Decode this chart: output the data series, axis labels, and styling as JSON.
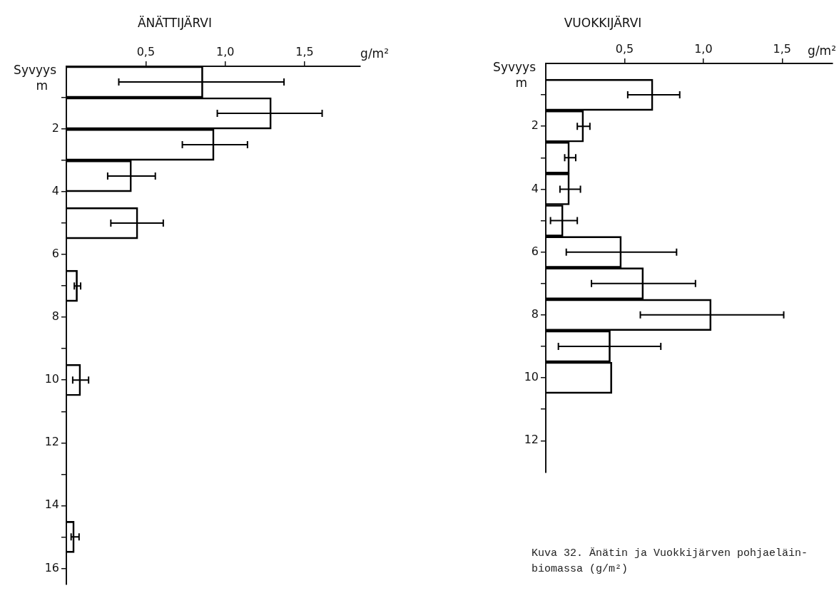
{
  "chart_data": [
    {
      "type": "bar",
      "orientation": "horizontal",
      "title": "ÄNÄTTIJÄRVI",
      "xlabel": "g/m²",
      "ylabel": "Syvyys m",
      "x": [
        0.5,
        1.5,
        2.5,
        3.5,
        5,
        7,
        10,
        15
      ],
      "series": [
        {
          "color": "#000000",
          "values": [
            0.86,
            1.29,
            0.93,
            0.41,
            0.45,
            0.07,
            0.09,
            0.05
          ],
          "errors": [
            [
              0.33,
              1.37
            ],
            [
              0.95,
              1.61
            ],
            [
              0.73,
              1.14
            ],
            [
              0.26,
              0.56
            ],
            [
              0.28,
              0.61
            ],
            [
              0.05,
              0.09
            ],
            [
              0.04,
              0.14
            ],
            [
              0.03,
              0.08
            ]
          ]
        }
      ],
      "xlim": [
        0,
        1.85
      ],
      "xticks": [
        {
          "value": 0.5,
          "label": "0,5"
        },
        {
          "value": 1,
          "label": "1,0"
        },
        {
          "value": 1.5,
          "label": "1,5"
        }
      ],
      "ylim": [
        16.5,
        0
      ],
      "yticks": [
        {
          "value": 1,
          "label": null
        },
        2,
        {
          "value": 3,
          "label": null
        },
        4,
        {
          "value": 5,
          "label": null
        },
        6,
        {
          "value": 7,
          "label": null
        },
        8,
        {
          "value": 9,
          "label": null
        },
        10,
        {
          "value": 11,
          "label": null
        },
        12,
        {
          "value": 13,
          "label": null
        },
        14,
        {
          "value": 15,
          "label": null
        },
        16
      ],
      "grid": false,
      "legend": false
    },
    {
      "type": "bar",
      "orientation": "horizontal",
      "title": "VUOKKIJÄRVI",
      "xlabel": "g/m²",
      "ylabel": "Syvyys m",
      "x": [
        1,
        2,
        3,
        4,
        5,
        6,
        7,
        8,
        9,
        10
      ],
      "series": [
        {
          "color": "#000000",
          "values": [
            0.68,
            0.24,
            0.15,
            0.15,
            0.11,
            0.48,
            0.62,
            1.05,
            0.41,
            0.42
          ],
          "errors": [
            [
              0.52,
              0.85
            ],
            [
              0.2,
              0.28
            ],
            [
              0.12,
              0.19
            ],
            [
              0.09,
              0.22
            ],
            [
              0.03,
              0.2
            ],
            [
              0.13,
              0.83
            ],
            [
              0.29,
              0.95
            ],
            [
              0.6,
              1.51
            ],
            [
              0.08,
              0.73
            ],
            null
          ]
        }
      ],
      "xlim": [
        0,
        1.82
      ],
      "xticks": [
        {
          "value": 0.5,
          "label": "0,5"
        },
        {
          "value": 1,
          "label": "1,0"
        },
        {
          "value": 1.5,
          "label": "1,5"
        }
      ],
      "ylim": [
        13,
        0
      ],
      "yticks": [
        {
          "value": 1,
          "label": null
        },
        2,
        {
          "value": 3,
          "label": null
        },
        4,
        {
          "value": 5,
          "label": null
        },
        6,
        {
          "value": 7,
          "label": null
        },
        8,
        {
          "value": 9,
          "label": null
        },
        10,
        {
          "value": 11,
          "label": null
        },
        12
      ],
      "grid": false,
      "legend": false,
      "annotations": [
        "Kuva 32. Änätin ja Vuokkijärven pohjaeläin-",
        "biomassa (g/m²)"
      ]
    }
  ]
}
